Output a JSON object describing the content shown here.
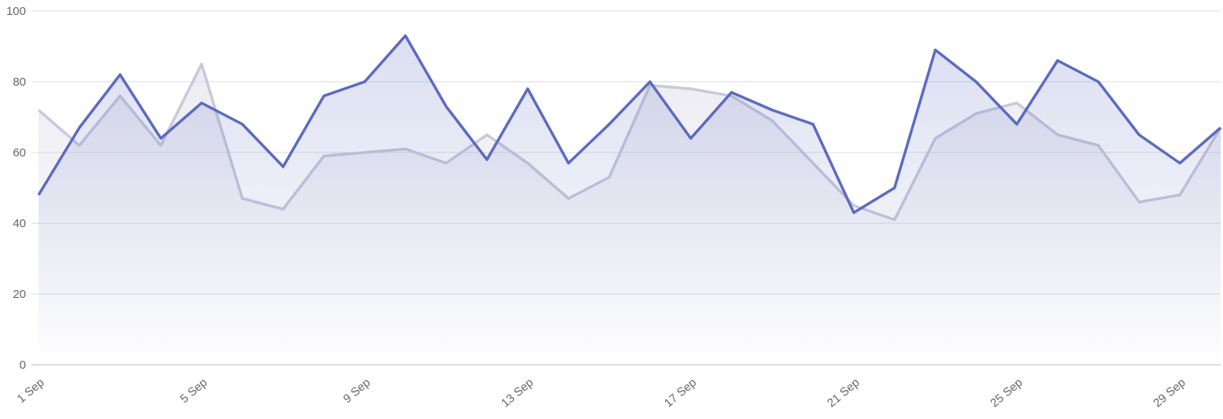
{
  "chart_data": {
    "type": "area",
    "categories": [
      "1 Sep",
      null,
      null,
      null,
      "5 Sep",
      null,
      null,
      null,
      "9 Sep",
      null,
      null,
      null,
      "13 Sep",
      null,
      null,
      null,
      "17 Sep",
      null,
      null,
      null,
      "21 Sep",
      null,
      null,
      null,
      "25 Sep",
      null,
      null,
      null,
      "29 Sep",
      null
    ],
    "series": [
      {
        "color": "#c9c9da",
        "values": [
          72,
          62,
          76,
          62,
          85,
          47,
          44,
          59,
          60,
          61,
          57,
          65,
          57,
          47,
          53,
          79,
          78,
          76,
          69,
          57,
          45,
          41,
          64,
          71,
          74,
          65,
          62,
          46,
          48,
          67
        ]
      },
      {
        "color": "#5c6bc0",
        "values": [
          48,
          67,
          82,
          64,
          74,
          68,
          56,
          76,
          80,
          93,
          73,
          58,
          78,
          57,
          68,
          80,
          64,
          77,
          72,
          68,
          43,
          50,
          89,
          80,
          68,
          86,
          80,
          65,
          57,
          67
        ]
      }
    ],
    "ylim": [
      0,
      100
    ],
    "yticks": [
      0,
      20,
      40,
      60,
      80,
      100
    ],
    "grid": true
  }
}
